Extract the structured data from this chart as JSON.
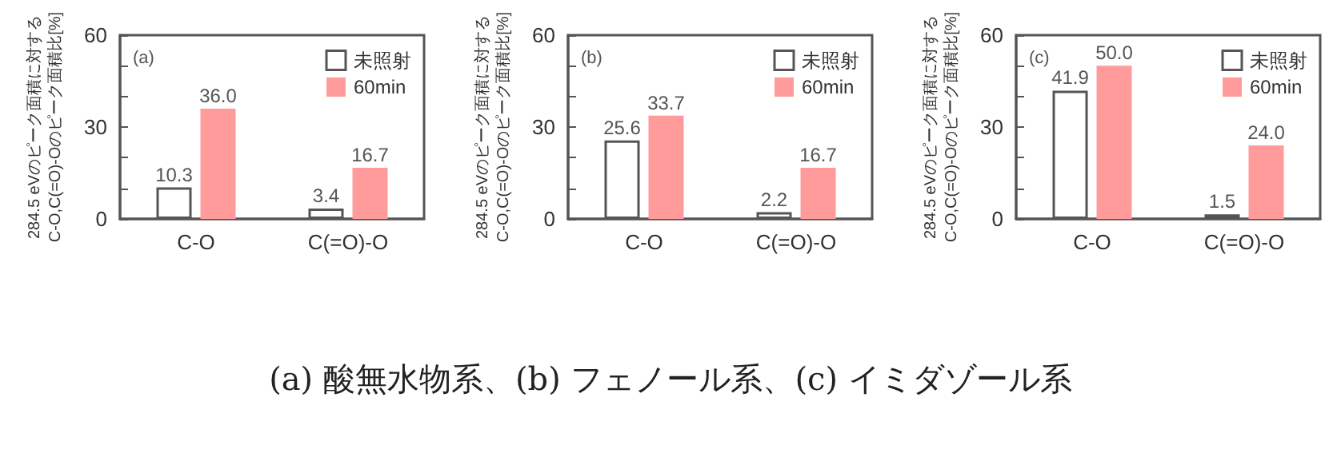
{
  "chart_data": [
    {
      "type": "bar",
      "title": "(a)",
      "ylabel": "284.5 eVのピーク面積に対する\nC-O,C(=O)-Oのピーク面積比[%]",
      "categories": [
        "C-O",
        "C(=O)-O"
      ],
      "series": [
        {
          "name": "未照射",
          "color": "#ffffff",
          "values": [
            10.3,
            3.4
          ],
          "value_labels": [
            "10.3",
            "3.4"
          ]
        },
        {
          "name": "60min",
          "color": "#ff9b9b",
          "values": [
            36.0,
            16.7
          ],
          "value_labels": [
            "36.0",
            "16.7"
          ]
        }
      ],
      "ylim": [
        0,
        60
      ],
      "yticks": [
        0,
        {
          "value": 10,
          "label": null
        },
        {
          "value": 20,
          "label": null
        },
        30,
        {
          "value": 40,
          "label": null
        },
        {
          "value": 50,
          "label": null
        },
        60
      ],
      "grid": false,
      "legend": "top right",
      "annotations": [
        "(a) 酸無水物系、(b) フェノール系、(c) イミダゾール系"
      ]
    },
    {
      "type": "bar",
      "title": "(b)",
      "ylabel": "284.5 eVのピーク面積に対する\nC-O,C(=O)-Oのピーク面積比[%]",
      "categories": [
        "C-O",
        "C(=O)-O"
      ],
      "series": [
        {
          "name": "未照射",
          "color": "#ffffff",
          "values": [
            25.6,
            2.2
          ],
          "value_labels": [
            "25.6",
            "2.2"
          ]
        },
        {
          "name": "60min",
          "color": "#ff9b9b",
          "values": [
            33.7,
            16.7
          ],
          "value_labels": [
            "33.7",
            "16.7"
          ]
        }
      ],
      "ylim": [
        0,
        60
      ],
      "yticks": [
        0,
        {
          "value": 10,
          "label": null
        },
        {
          "value": 20,
          "label": null
        },
        30,
        {
          "value": 40,
          "label": null
        },
        {
          "value": 50,
          "label": null
        },
        60
      ],
      "grid": false,
      "legend": "top right"
    },
    {
      "type": "bar",
      "title": "(c)",
      "ylabel": "284.5 eVのピーク面積に対する\nC-O,C(=O)-Oのピーク面積比[%]",
      "categories": [
        "C-O",
        "C(=O)-O"
      ],
      "series": [
        {
          "name": "未照射",
          "color": "#ffffff",
          "values": [
            41.9,
            1.5
          ],
          "value_labels": [
            "41.9",
            "1.5"
          ]
        },
        {
          "name": "60min",
          "color": "#ff9b9b",
          "values": [
            50.0,
            24.0
          ],
          "value_labels": [
            "50.0",
            "24.0"
          ]
        }
      ],
      "ylim": [
        0,
        60
      ],
      "yticks": [
        0,
        {
          "value": 10,
          "label": null
        },
        {
          "value": 20,
          "label": null
        },
        30,
        {
          "value": 40,
          "label": null
        },
        {
          "value": 50,
          "label": null
        },
        60
      ],
      "grid": false,
      "legend": "top right"
    }
  ]
}
